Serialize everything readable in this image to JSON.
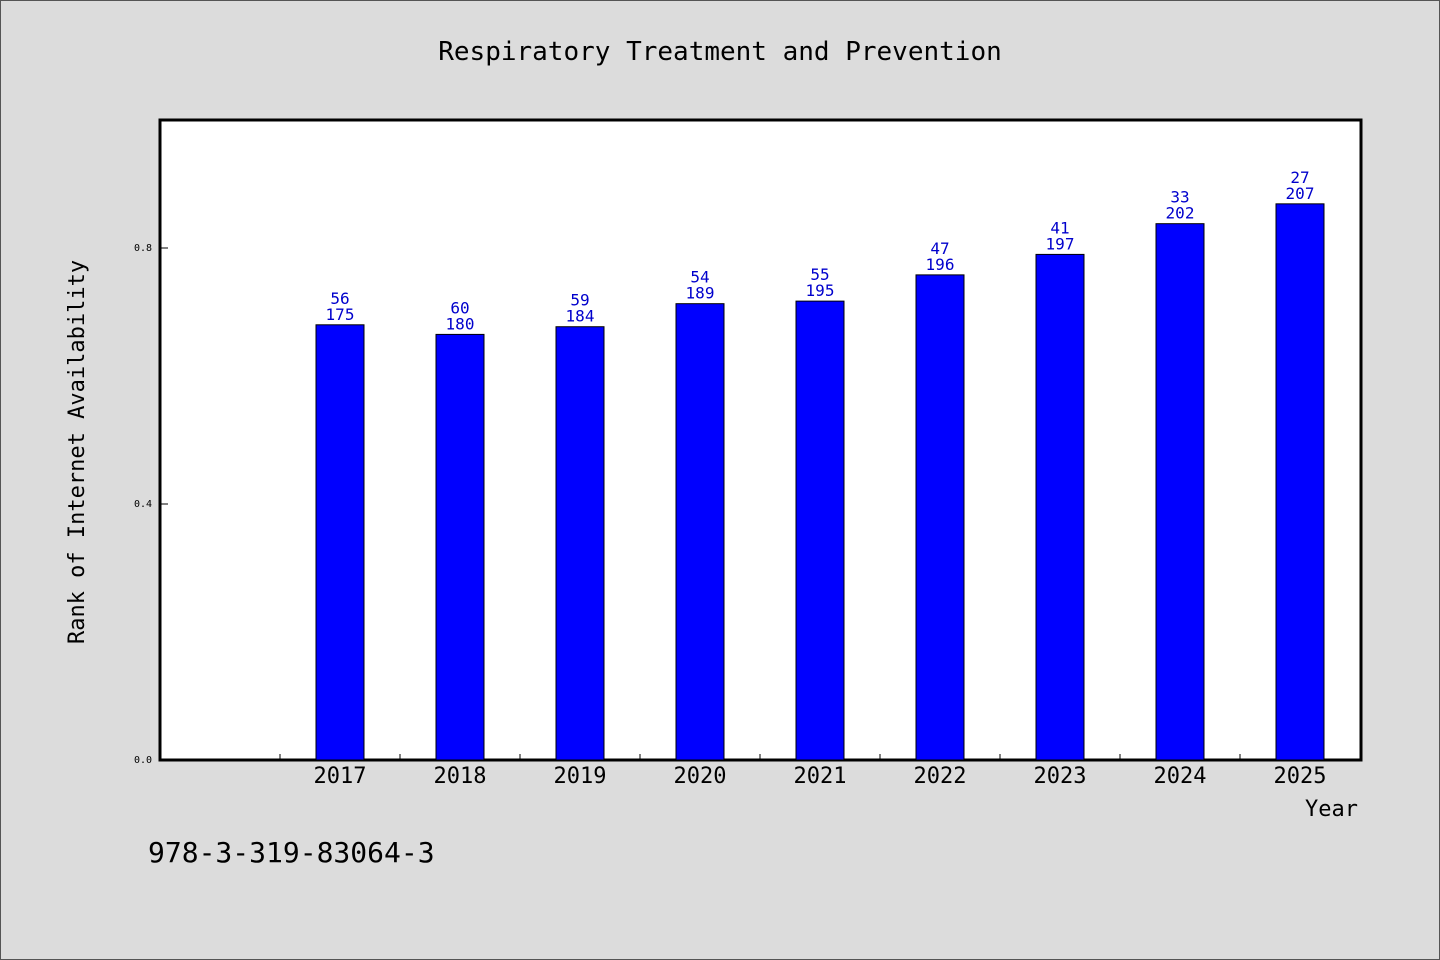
{
  "chart_data": {
    "type": "bar",
    "title": "Respiratory Treatment and Prevention",
    "xlabel": "Year",
    "ylabel": "Rank of Internet Availability",
    "categories": [
      "2017",
      "2018",
      "2019",
      "2020",
      "2021",
      "2022",
      "2023",
      "2024",
      "2025"
    ],
    "values": [
      0.68,
      0.665,
      0.677,
      0.713,
      0.717,
      0.758,
      0.79,
      0.838,
      0.869
    ],
    "annotations_top": [
      "56",
      "60",
      "59",
      "54",
      "55",
      "47",
      "41",
      "33",
      "27"
    ],
    "annotations_bottom": [
      "175",
      "180",
      "184",
      "189",
      "195",
      "196",
      "197",
      "202",
      "207"
    ],
    "yticks": [
      0.0,
      0.4,
      0.8
    ],
    "ytick_labels": [
      "0.0",
      "0.4",
      "0.8"
    ],
    "ylim": [
      0,
      1.0
    ],
    "grid": false,
    "legend": "none",
    "bar_color": "#0000ff",
    "label_color": "#0000cc"
  },
  "footer": {
    "isbn": "978-3-319-83064-3"
  }
}
